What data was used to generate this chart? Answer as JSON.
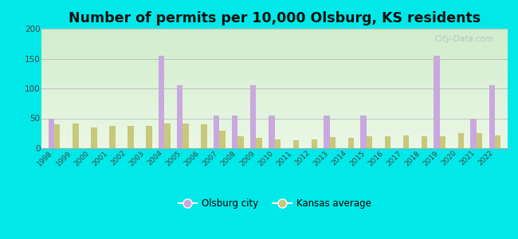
{
  "title": "Number of permits per 10,000 Olsburg, KS residents",
  "years": [
    1998,
    1999,
    2000,
    2001,
    2002,
    2003,
    2004,
    2005,
    2006,
    2007,
    2008,
    2009,
    2010,
    2011,
    2012,
    2013,
    2014,
    2015,
    2016,
    2017,
    2018,
    2019,
    2020,
    2021,
    2022
  ],
  "olsburg": [
    50,
    0,
    0,
    0,
    0,
    0,
    155,
    105,
    0,
    55,
    55,
    105,
    55,
    0,
    0,
    55,
    0,
    55,
    0,
    0,
    0,
    155,
    0,
    50,
    105
  ],
  "kansas": [
    40,
    42,
    35,
    38,
    38,
    38,
    42,
    42,
    40,
    30,
    20,
    17,
    15,
    14,
    15,
    19,
    18,
    20,
    20,
    22,
    20,
    20,
    25,
    25,
    22
  ],
  "olsburg_color": "#c9a8e0",
  "kansas_color": "#c8c87a",
  "outer_bg": "#00e8e8",
  "ylim": [
    0,
    200
  ],
  "yticks": [
    0,
    50,
    100,
    150,
    200
  ],
  "title_fontsize": 12.5,
  "legend_olsburg": "Olsburg city",
  "legend_kansas": "Kansas average",
  "watermark": "City-Data.com"
}
